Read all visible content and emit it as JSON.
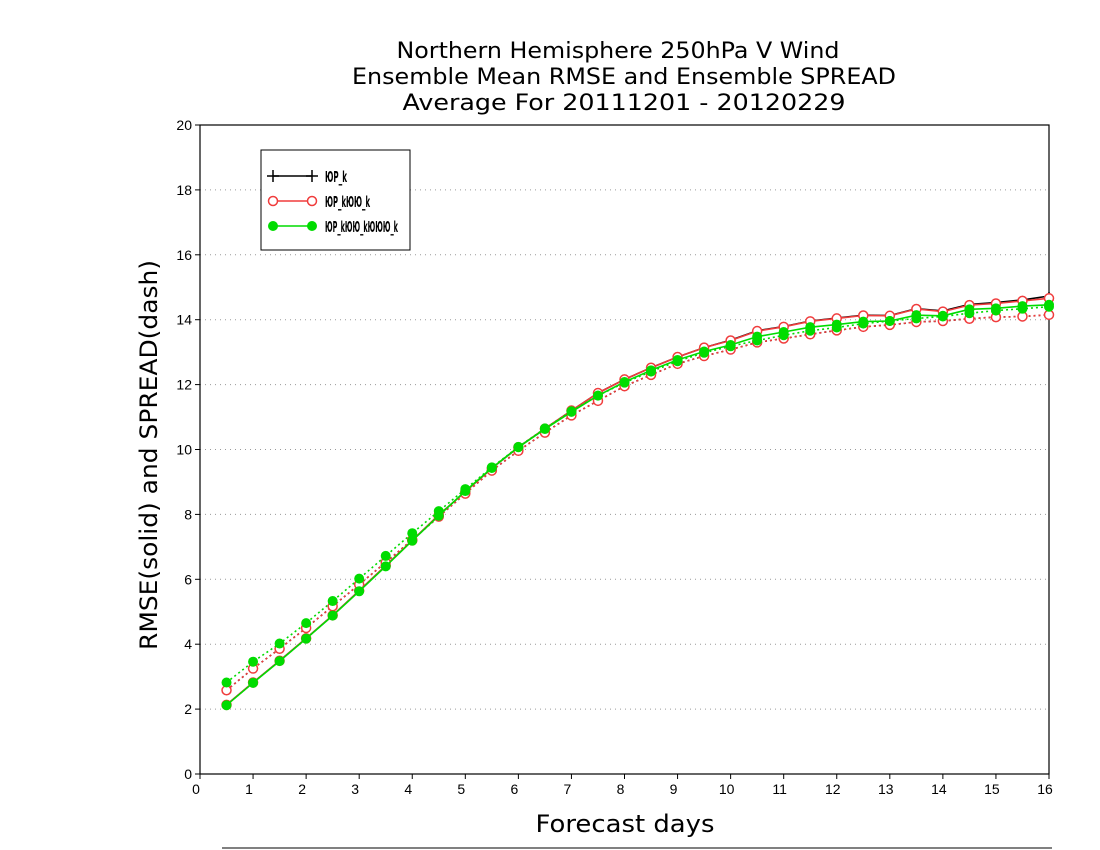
{
  "chart_data": {
    "type": "line",
    "title": [
      "Northern Hemisphere 250hPa V Wind",
      "Ensemble Mean RMSE and Ensemble SPREAD",
      "Average For 20111201 - 20120229"
    ],
    "xlabel": "Forecast days",
    "ylabel": "RMSE(solid) and SPREAD(dash)",
    "xlim": [
      0,
      16
    ],
    "ylim": [
      0,
      20
    ],
    "xticks": [
      0,
      1,
      2,
      3,
      4,
      5,
      6,
      7,
      8,
      9,
      10,
      11,
      12,
      13,
      14,
      15,
      16
    ],
    "yticks": [
      0,
      2,
      4,
      6,
      8,
      10,
      12,
      14,
      16,
      18,
      20
    ],
    "grid": "horizontal dotted",
    "legend_position": "top-left",
    "x": [
      0.5,
      1,
      1.5,
      2,
      2.5,
      3,
      3.5,
      4,
      4.5,
      5,
      5.5,
      6,
      6.5,
      7,
      7.5,
      8,
      8.5,
      9,
      9.5,
      10,
      10.5,
      11,
      11.5,
      12,
      12.5,
      13,
      13.5,
      14,
      14.5,
      15,
      15.5,
      16
    ],
    "series": [
      {
        "name": "ЮP_k",
        "color": "#000000",
        "marker": "plus",
        "rmse": [
          2.13,
          2.82,
          3.49,
          4.18,
          4.89,
          5.65,
          6.42,
          7.2,
          7.98,
          8.7,
          9.42,
          10.07,
          10.64,
          11.2,
          11.74,
          12.16,
          12.52,
          12.85,
          13.14,
          13.37,
          13.66,
          13.79,
          13.96,
          14.05,
          14.14,
          14.13,
          14.34,
          14.27,
          14.47,
          14.53,
          14.61,
          14.73
        ],
        "spread": [
          2.58,
          3.25,
          3.86,
          4.5,
          5.17,
          5.84,
          6.52,
          7.22,
          7.93,
          8.64,
          9.35,
          9.96,
          10.52,
          11.05,
          11.5,
          11.95,
          12.3,
          12.64,
          12.88,
          13.08,
          13.3,
          13.42,
          13.55,
          13.67,
          13.78,
          13.84,
          13.93,
          13.96,
          14.03,
          14.08,
          14.1,
          14.15
        ]
      },
      {
        "name": "ЮP_kЮЮ_k",
        "color": "#f03c3c",
        "marker": "open-circle",
        "rmse": [
          2.13,
          2.82,
          3.49,
          4.18,
          4.89,
          5.65,
          6.42,
          7.2,
          7.98,
          8.7,
          9.42,
          10.07,
          10.64,
          11.2,
          11.74,
          12.16,
          12.52,
          12.85,
          13.14,
          13.36,
          13.65,
          13.78,
          13.95,
          14.04,
          14.13,
          14.12,
          14.33,
          14.25,
          14.45,
          14.5,
          14.58,
          14.66
        ],
        "spread": [
          2.58,
          3.25,
          3.86,
          4.5,
          5.17,
          5.84,
          6.52,
          7.22,
          7.93,
          8.64,
          9.35,
          9.96,
          10.52,
          11.05,
          11.5,
          11.95,
          12.3,
          12.64,
          12.88,
          13.08,
          13.3,
          13.42,
          13.55,
          13.67,
          13.78,
          13.84,
          13.93,
          13.96,
          14.03,
          14.08,
          14.1,
          14.15
        ]
      },
      {
        "name": "ЮP_kЮЮ_kЮЮЮ_k",
        "color": "#00dc00",
        "marker": "filled-circle",
        "rmse": [
          2.12,
          2.81,
          3.48,
          4.17,
          4.88,
          5.63,
          6.4,
          7.19,
          7.96,
          8.72,
          9.43,
          10.07,
          10.63,
          11.16,
          11.66,
          12.08,
          12.44,
          12.76,
          13.02,
          13.22,
          13.48,
          13.62,
          13.77,
          13.85,
          13.94,
          13.96,
          14.14,
          14.12,
          14.32,
          14.35,
          14.42,
          14.46
        ],
        "spread": [
          2.82,
          3.46,
          4.02,
          4.65,
          5.33,
          6.02,
          6.72,
          7.42,
          8.1,
          8.78,
          9.45,
          10.08,
          10.65,
          11.18,
          11.66,
          12.06,
          12.4,
          12.72,
          12.98,
          13.18,
          13.36,
          13.52,
          13.66,
          13.76,
          13.88,
          13.96,
          14.04,
          14.1,
          14.2,
          14.28,
          14.34,
          14.4
        ]
      }
    ]
  }
}
